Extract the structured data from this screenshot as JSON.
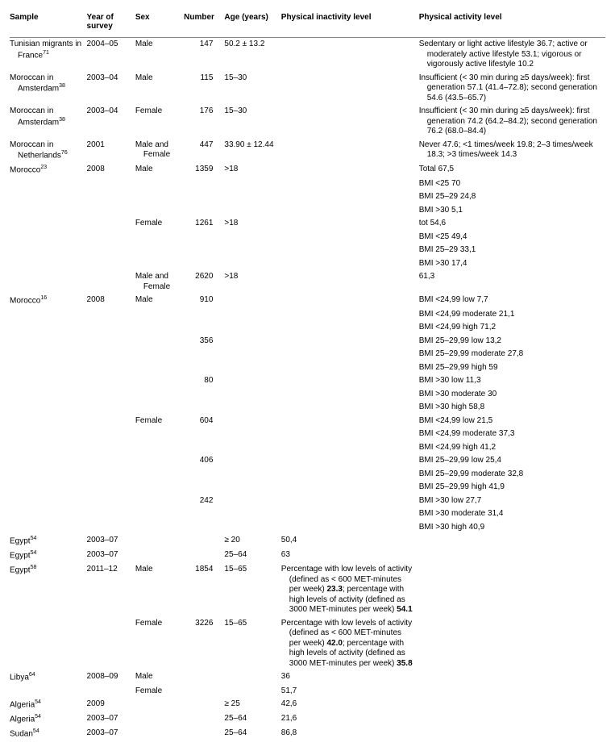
{
  "columns": [
    "Sample",
    "Year of survey",
    "Sex",
    "Number",
    "Age (years)",
    "Physical inactivity level",
    "Physical activity level"
  ],
  "rows": [
    {
      "sample": "Tunisian migrants in France",
      "ref": "71",
      "year": "2004–05",
      "sex": "Male",
      "number": "147",
      "age": "50.2 ± 13.2",
      "inact": "",
      "act": "Sedentary or light active lifestyle 36.7; active or moderately active lifestyle 53.1; vigorous or vigorously active lifestyle 10.2"
    },
    {
      "sample": "Moroccan in Amsterdam",
      "ref": "38",
      "year": "2003–04",
      "sex": "Male",
      "number": "115",
      "age": "15–30",
      "inact": "",
      "act": "Insufficient (< 30 min during ≥5 days/week): first generation 57.1 (41.4–72.8); second generation 54.6 (43.5–65.7)"
    },
    {
      "sample": "Moroccan in Amsterdam",
      "ref": "38",
      "year": "2003–04",
      "sex": "Female",
      "number": "176",
      "age": "15–30",
      "inact": "",
      "act": "Insufficient (< 30 min during ≥5 days/week): first generation 74.2 (64.2–84.2); second generation 76.2 (68.0–84.4)"
    },
    {
      "sample": "Moroccan in Netherlands",
      "ref": "76",
      "year": "2001",
      "sex": "Male and Female",
      "number": "447",
      "age": "33.90 ± 12.44",
      "inact": "",
      "act": "Never 47.6; <1 times/week 19.8; 2–3 times/week 18.3; >3 times/week 14.3"
    },
    {
      "sample": "Morocco",
      "ref": "23",
      "year": "2008",
      "sex": "Male",
      "number": "1359",
      "age": ">18",
      "inact": "",
      "act": "Total 67,5"
    },
    {
      "sample": "",
      "ref": "",
      "year": "",
      "sex": "",
      "number": "",
      "age": "",
      "inact": "",
      "act": "BMI <25 70"
    },
    {
      "sample": "",
      "ref": "",
      "year": "",
      "sex": "",
      "number": "",
      "age": "",
      "inact": "",
      "act": "BMI 25–29 24,8"
    },
    {
      "sample": "",
      "ref": "",
      "year": "",
      "sex": "",
      "number": "",
      "age": "",
      "inact": "",
      "act": "BMI >30 5,1"
    },
    {
      "sample": "",
      "ref": "",
      "year": "",
      "sex": "Female",
      "number": "1261",
      "age": ">18",
      "inact": "",
      "act": "tot 54,6"
    },
    {
      "sample": "",
      "ref": "",
      "year": "",
      "sex": "",
      "number": "",
      "age": "",
      "inact": "",
      "act": "BMI <25 49,4"
    },
    {
      "sample": "",
      "ref": "",
      "year": "",
      "sex": "",
      "number": "",
      "age": "",
      "inact": "",
      "act": "BMI 25–29 33,1"
    },
    {
      "sample": "",
      "ref": "",
      "year": "",
      "sex": "",
      "number": "",
      "age": "",
      "inact": "",
      "act": "BMI >30 17,4"
    },
    {
      "sample": "",
      "ref": "",
      "year": "",
      "sex": "Male and Female",
      "number": "2620",
      "age": ">18",
      "inact": "",
      "act": "61,3"
    },
    {
      "sample": "Morocco",
      "ref": "16",
      "year": "2008",
      "sex": "Male",
      "number": "910",
      "age": "",
      "inact": "",
      "act": "BMI <24,99 low 7,7"
    },
    {
      "sample": "",
      "ref": "",
      "year": "",
      "sex": "",
      "number": "",
      "age": "",
      "inact": "",
      "act": "BMI <24,99 moderate 21,1"
    },
    {
      "sample": "",
      "ref": "",
      "year": "",
      "sex": "",
      "number": "",
      "age": "",
      "inact": "",
      "act": "BMI <24,99 high 71,2"
    },
    {
      "sample": "",
      "ref": "",
      "year": "",
      "sex": "",
      "number": "356",
      "age": "",
      "inact": "",
      "act": "BMI 25–29,99 low 13,2"
    },
    {
      "sample": "",
      "ref": "",
      "year": "",
      "sex": "",
      "number": "",
      "age": "",
      "inact": "",
      "act": "BMI 25–29,99 moderate 27,8"
    },
    {
      "sample": "",
      "ref": "",
      "year": "",
      "sex": "",
      "number": "",
      "age": "",
      "inact": "",
      "act": "BMI 25–29,99 high 59"
    },
    {
      "sample": "",
      "ref": "",
      "year": "",
      "sex": "",
      "number": "80",
      "age": "",
      "inact": "",
      "act": "BMI >30 low 11,3"
    },
    {
      "sample": "",
      "ref": "",
      "year": "",
      "sex": "",
      "number": "",
      "age": "",
      "inact": "",
      "act": "BMI >30 moderate 30"
    },
    {
      "sample": "",
      "ref": "",
      "year": "",
      "sex": "",
      "number": "",
      "age": "",
      "inact": "",
      "act": "BMI >30 high 58,8"
    },
    {
      "sample": "",
      "ref": "",
      "year": "",
      "sex": "Female",
      "number": "604",
      "age": "",
      "inact": "",
      "act": "BMI <24,99 low 21,5"
    },
    {
      "sample": "",
      "ref": "",
      "year": "",
      "sex": "",
      "number": "",
      "age": "",
      "inact": "",
      "act": "BMI <24,99 moderate 37,3"
    },
    {
      "sample": "",
      "ref": "",
      "year": "",
      "sex": "",
      "number": "",
      "age": "",
      "inact": "",
      "act": "BMI <24,99 high 41,2"
    },
    {
      "sample": "",
      "ref": "",
      "year": "",
      "sex": "",
      "number": "406",
      "age": "",
      "inact": "",
      "act": "BMI 25–29,99 low 25,4"
    },
    {
      "sample": "",
      "ref": "",
      "year": "",
      "sex": "",
      "number": "",
      "age": "",
      "inact": "",
      "act": "BMI 25–29,99 moderate 32,8"
    },
    {
      "sample": "",
      "ref": "",
      "year": "",
      "sex": "",
      "number": "",
      "age": "",
      "inact": "",
      "act": "BMI 25–29,99 high 41,9"
    },
    {
      "sample": "",
      "ref": "",
      "year": "",
      "sex": "",
      "number": "242",
      "age": "",
      "inact": "",
      "act": "BMI >30 low 27,7"
    },
    {
      "sample": "",
      "ref": "",
      "year": "",
      "sex": "",
      "number": "",
      "age": "",
      "inact": "",
      "act": "BMI >30 moderate 31,4"
    },
    {
      "sample": "",
      "ref": "",
      "year": "",
      "sex": "",
      "number": "",
      "age": "",
      "inact": "",
      "act": "BMI >30 high 40,9"
    },
    {
      "sample": "Egypt",
      "ref": "54",
      "year": "2003–07",
      "sex": "",
      "number": "",
      "age": "≥ 20",
      "inact": "50,4",
      "act": ""
    },
    {
      "sample": "Egypt",
      "ref": "54",
      "year": "2003–07",
      "sex": "",
      "number": "",
      "age": "25–64",
      "inact": "63",
      "act": ""
    },
    {
      "sample": "Egypt",
      "ref": "58",
      "year": "2011–12",
      "sex": "Male",
      "number": "1854",
      "age": "15–65",
      "inact": "Percentage with low levels of activity (defined as < 600 MET-minutes per week) 23.3; percentage with high levels of activity (defined as 3000 MET-minutes per week) 54.1",
      "act": ""
    },
    {
      "sample": "",
      "ref": "",
      "year": "",
      "sex": "Female",
      "number": "3226",
      "age": "15–65",
      "inact": "Percentage with low levels of activity (defined as < 600 MET-minutes per week) 42.0; percentage with high levels of activity (defined as 3000 MET-minutes per week) 35.8",
      "act": ""
    },
    {
      "sample": "Libya",
      "ref": "64",
      "year": "2008–09",
      "sex": "Male",
      "number": "",
      "age": "",
      "inact": "36",
      "act": ""
    },
    {
      "sample": "",
      "ref": "",
      "year": "",
      "sex": "Female",
      "number": "",
      "age": "",
      "inact": "51,7",
      "act": ""
    },
    {
      "sample": "Algeria",
      "ref": "54",
      "year": "2009",
      "sex": "",
      "number": "",
      "age": "≥ 25",
      "inact": "42,6",
      "act": ""
    },
    {
      "sample": "Algeria",
      "ref": "54",
      "year": "2003–07",
      "sex": "",
      "number": "",
      "age": "25–64",
      "inact": "21,6",
      "act": ""
    },
    {
      "sample": "Sudan",
      "ref": "54",
      "year": "2003–07",
      "sex": "",
      "number": "",
      "age": "25–64",
      "inact": "86,8",
      "act": ""
    }
  ],
  "bold_numbers": [
    "23.3",
    "54.1",
    "42.0",
    "35.8"
  ]
}
